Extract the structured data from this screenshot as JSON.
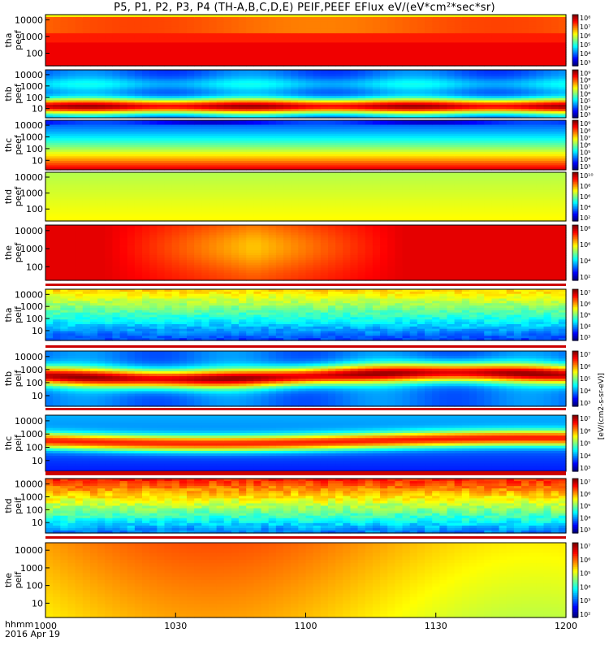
{
  "title": "P5, P1, P2, P3, P4 (TH-A,B,C,D,E) PEIF,PEEF EFlux eV/(eV*cm²*sec*sr)",
  "footer": {
    "line1": "hhmm",
    "line2": "2016 Apr 19"
  },
  "colorbar_label": "[eV/(cm2-s-sr-eV)]",
  "chart_data": {
    "type": "heatmap",
    "title": "P5, P1, P2, P3, P4 (TH-A,B,C,D,E) PEIF,PEEF EFlux eV/(eV*cm²*sec*sr)",
    "x_tick_labels": [
      "1000",
      "1030",
      "1100",
      "1130",
      "1200"
    ],
    "x_ticks_minutes": [
      0,
      30,
      60,
      90,
      120
    ],
    "xlim_minutes": [
      0,
      120
    ],
    "panels": [
      {
        "id": "tha-peef",
        "label1": "tha",
        "label2": "peef",
        "profile": "tha_peef",
        "y_ticks": [
          "10000",
          "1000",
          "100"
        ],
        "cbar_ticks": [
          "10⁸",
          "10⁷",
          "10⁶",
          "10⁵",
          "10⁴",
          "10³"
        ]
      },
      {
        "id": "thb-peef",
        "label1": "thb",
        "label2": "peef",
        "profile": "thb_peef",
        "y_ticks": [
          "10000",
          "1000",
          "100",
          "10"
        ],
        "cbar_ticks": [
          "10⁹",
          "10⁸",
          "10⁷",
          "10⁶",
          "10⁵",
          "10⁴",
          "10³"
        ]
      },
      {
        "id": "thc-peef",
        "label1": "thc",
        "label2": "peef",
        "profile": "thc_peef",
        "y_ticks": [
          "10000",
          "1000",
          "100",
          "10"
        ],
        "cbar_ticks": [
          "10⁹",
          "10⁸",
          "10⁷",
          "10⁶",
          "10⁵",
          "10⁴",
          "10³"
        ]
      },
      {
        "id": "thd-peef",
        "label1": "thd",
        "label2": "peef",
        "profile": "thd_peef",
        "y_ticks": [
          "10000",
          "1000",
          "100"
        ],
        "cbar_ticks": [
          "10¹⁰",
          "10⁸",
          "10⁶",
          "10⁴",
          "10²"
        ]
      },
      {
        "id": "the-peef",
        "label1": "the",
        "label2": "peef",
        "profile": "the_peef",
        "y_ticks": [
          "10000",
          "1000",
          "100"
        ],
        "cbar_ticks": [
          "10⁸",
          "10⁶",
          "10⁴",
          "10²"
        ]
      },
      {
        "id": "tha-peif",
        "label1": "tha",
        "label2": "peif",
        "profile": "tha_peif",
        "y_ticks": [
          "10000",
          "1000",
          "100",
          "10"
        ],
        "cbar_ticks": [
          "10⁷",
          "10⁶",
          "10⁵",
          "10⁴",
          "10³"
        ]
      },
      {
        "id": "thb-peif",
        "label1": "thb",
        "label2": "peif",
        "profile": "thb_peif",
        "y_ticks": [
          "10000",
          "1000",
          "100",
          "10"
        ],
        "cbar_ticks": [
          "10⁷",
          "10⁶",
          "10⁵",
          "10⁴",
          "10³"
        ]
      },
      {
        "id": "thc-peif",
        "label1": "thc",
        "label2": "peif",
        "profile": "thc_peif",
        "y_ticks": [
          "10000",
          "1000",
          "100",
          "10"
        ],
        "cbar_ticks": [
          "10⁷",
          "10⁶",
          "10⁵",
          "10⁴",
          "10³"
        ]
      },
      {
        "id": "thd-peif",
        "label1": "thd",
        "label2": "peif",
        "profile": "thd_peif",
        "y_ticks": [
          "10000",
          "1000",
          "100",
          "10"
        ],
        "cbar_ticks": [
          "10⁷",
          "10⁶",
          "10⁵",
          "10⁴",
          "10³"
        ]
      },
      {
        "id": "the-peif",
        "label1": "the",
        "label2": "peif",
        "profile": "the_peif",
        "y_ticks": [
          "10000",
          "1000",
          "100",
          "10"
        ],
        "cbar_ticks": [
          "10⁷",
          "10⁶",
          "10⁵",
          "10⁴",
          "10³",
          "10²"
        ]
      }
    ]
  }
}
